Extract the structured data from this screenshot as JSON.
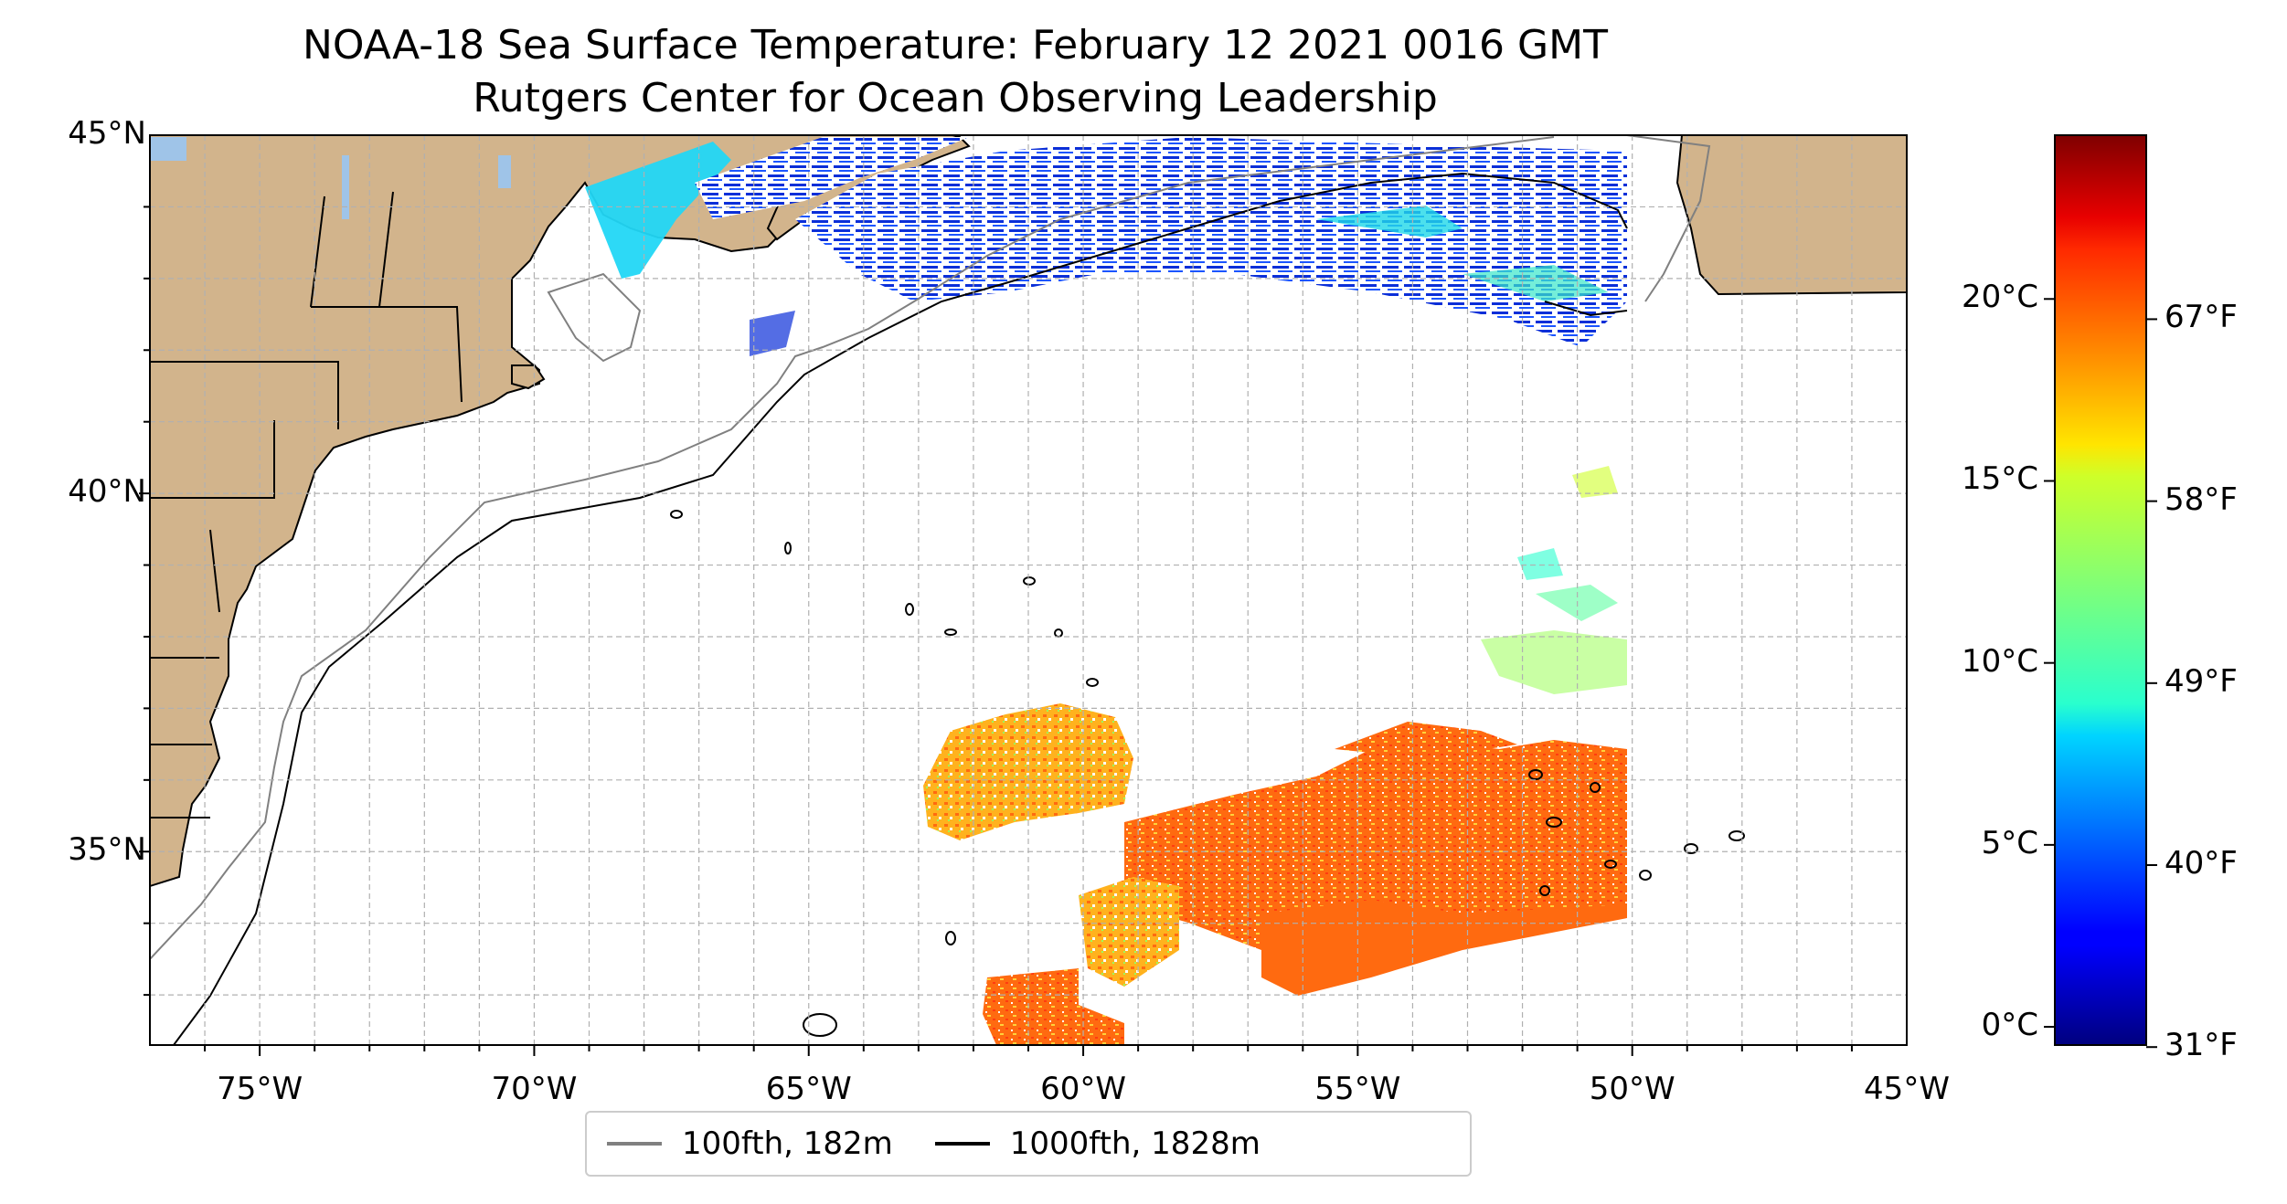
{
  "title": "NOAA-18 Sea Surface Temperature: February 12 2021 0016 GMT",
  "subtitle": "Rutgers Center for Ocean Observing Leadership",
  "map": {
    "extent": {
      "lon_min": -77,
      "lon_max": -45,
      "lat_min": 32.3,
      "lat_max": 45
    },
    "lat_ticks": [
      {
        "value": 45,
        "label": "45°N"
      },
      {
        "value": 40,
        "label": "40°N"
      },
      {
        "value": 35,
        "label": "35°N"
      }
    ],
    "lon_ticks": [
      {
        "value": -75,
        "label": "75°W"
      },
      {
        "value": -70,
        "label": "70°W"
      },
      {
        "value": -65,
        "label": "65°W"
      },
      {
        "value": -60,
        "label": "60°W"
      },
      {
        "value": -55,
        "label": "55°W"
      },
      {
        "value": -50,
        "label": "50°W"
      },
      {
        "value": -45,
        "label": "45°W"
      }
    ],
    "grid": true,
    "land_color": "#d2b48c",
    "lake_color": "#9fc4e8"
  },
  "colorbar": {
    "colormap": "jet",
    "range_c": [
      -0.5,
      24.5
    ],
    "celsius_ticks": [
      {
        "value": 0,
        "label": "0°C"
      },
      {
        "value": 5,
        "label": "5°C"
      },
      {
        "value": 10,
        "label": "10°C"
      },
      {
        "value": 15,
        "label": "15°C"
      },
      {
        "value": 20,
        "label": "20°C"
      }
    ],
    "fahrenheit_ticks": [
      {
        "value": 31,
        "label": "31°F"
      },
      {
        "value": 40,
        "label": "40°F"
      },
      {
        "value": 49,
        "label": "49°F"
      },
      {
        "value": 58,
        "label": "58°F"
      },
      {
        "value": 67,
        "label": "67°F"
      }
    ]
  },
  "legend": {
    "placement": "bottom-center",
    "items": [
      {
        "label": "100fth, 182m",
        "color": "#808080"
      },
      {
        "label": "1000fth, 1828m",
        "color": "#000000"
      }
    ]
  }
}
